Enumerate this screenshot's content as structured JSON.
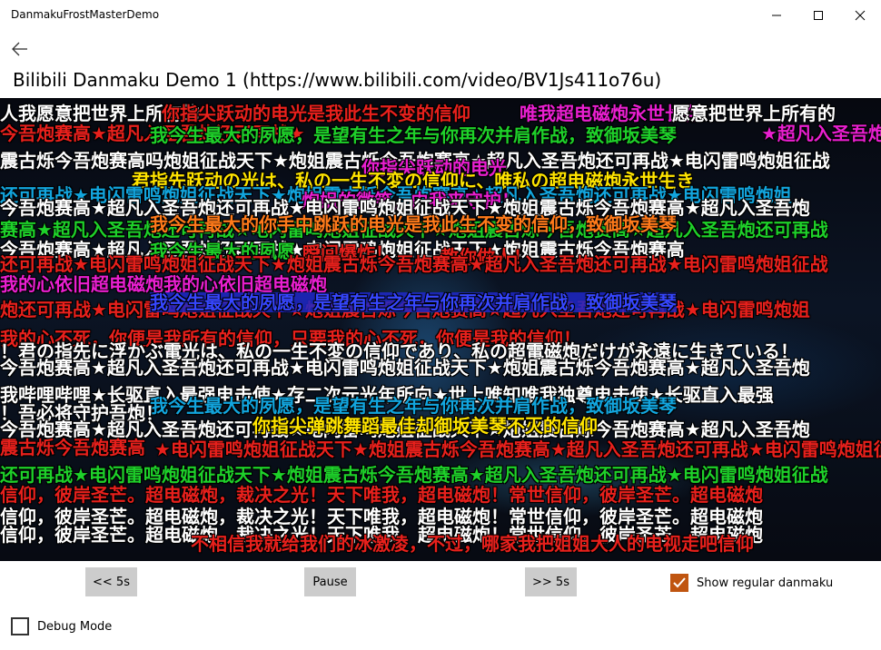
{
  "window": {
    "title": "DanmakuFrostMasterDemo"
  },
  "page": {
    "title": "Bilibili Danmaku Demo 1 (https://www.bilibili.com/video/BV1Js411o76u)"
  },
  "danmaku": [
    "人我愿意把世界上所有的",
    "你指尖跃动的电光是我此生不变的信仰",
    "唯我超电磁炮永世长存",
    "愿意把世界上所有的",
    "今吾炮赛高★超凡入圣吾炮还可再战★",
    "我今生最大的夙愿，是望有生之年与你再次并肩作战，致御坂美琴",
    "★超凡入圣吾炮",
    "震古烁今吾炮赛高吗炮姐征战天下★炮姐震古烁今吾炮赛高★超凡入圣吾炮还可再战★电闪雷鸣炮姐征战",
    "你指尖跃动的电光",
    "君指先跃动の光は、私の一生不変の信仰に、唯私の超电磁炮永世生き",
    "还可再战★电闪雷鸣炮姐征战天下★炮姐震古烁今吾炮赛高★超凡入圣吾炮还可再战★电闪雷鸣炮姐",
    "炮姐的微笑，由我来守护！",
    "今吾炮赛高★超凡入圣吾炮还可再战★电闪雷鸣炮姐征战天下★炮姐震古烁今吾炮赛高★超凡入圣吾炮",
    "赛高★超凡入圣吾炮还可再战★电闪雷鸣炮姐征战天下★炮姐震古烁今吾炮赛高★超凡入圣吾炮还可再战",
    "我今生最大的你手中跳跃的电光是我此生不变的信仰，致御坂美琴",
    "今吾炮赛高★超凡入圣吾炮还可再战★电闪雷鸣炮姐征战天下★炮姐震古烁今吾炮赛高",
    "我今生最大的夙愿",
    "瞬间爆炸！",
    "教你做人！",
    "还可再战★电闪雷鸣炮姐征战天下★炮姐震古烁今吾炮赛高★超凡入圣吾炮还可再战★电闪雷鸣炮姐征战",
    "我的心依旧超电磁炮我的心依旧超电磁炮",
    "炮还可再战★电闪雷鸣炮姐征战天下★炮姐震古烁今吾炮赛高★超凡入圣吾炮还可再战★电闪雷鸣炮姐",
    "我今生最大的夙愿，是望有生之年与你再次并肩作战，致御坂美琴",
    "我的心不死，你便是我所有的信仰，只要我的心不死，你便是我的信仰！",
    "！君の指先に浮かぶ電光は、私の一生不変の信仰であり、私の超電磁炮だけが永遠に生きている！",
    "今吾炮赛高★超凡入圣吾炮还可再战★电闪雷鸣炮姐征战天下★炮姐震古烁今吾炮赛高★超凡入圣吾炮",
    "我哔哩哔哩★长驱直入最强电击使★存二次元光年所向★世上唯知唯我独尊电击使★长驱直入最强",
    "我今生最大的夙愿，是望有生之年与你再次并肩作战，致御坂美琴",
    "！吾必将守护吾炮！",
    "今吾炮赛高★超凡入圣吾炮还可再战★电闪雷鸣炮姐征战天下★炮姐震古烁今吾炮赛高★超凡入圣吾炮",
    "你指尖弹跳舞蹈最佳却御坂美琴不灭的信仰",
    "震古烁今吾炮赛高",
    "★电闪雷鸣炮姐征战天下★炮姐震古烁今吾炮赛高★超凡入圣吾炮还可再战★电闪雷鸣炮姐征战",
    "还可再战★电闪雷鸣炮姐征战天下★炮姐震古烁今吾炮赛高★超凡入圣吾炮还可再战★电闪雷鸣炮姐征战",
    "信仰，彼岸圣芒。超电磁炮，裁决之光！天下唯我，超电磁炮！常世信仰，彼岸圣芒。超电磁炮",
    "信仰，彼岸圣芒。超电磁炮，裁决之光！天下唯我，超电磁炮！常世信仰，彼岸圣芒。超电磁炮",
    "信仰，彼岸圣芒。超电磁炮，裁决之光！天下唯我，超电磁炮！常世信仰，彼岸圣芒。超电磁炮",
    "不相信我就给我们的冰激凌，不过，哪家我把姐姐大人的电视走吧信仰"
  ],
  "controls": {
    "back_label": "<< 5s",
    "pause_label": "Pause",
    "forward_label": ">> 5s",
    "regular_label": "Show regular danmaku",
    "regular_checked": true,
    "debug_label": "Debug Mode",
    "debug_checked": false
  },
  "colors": {
    "accent": "#c05510",
    "button_bg": "#cccccc",
    "video_bg": "#05070e"
  }
}
